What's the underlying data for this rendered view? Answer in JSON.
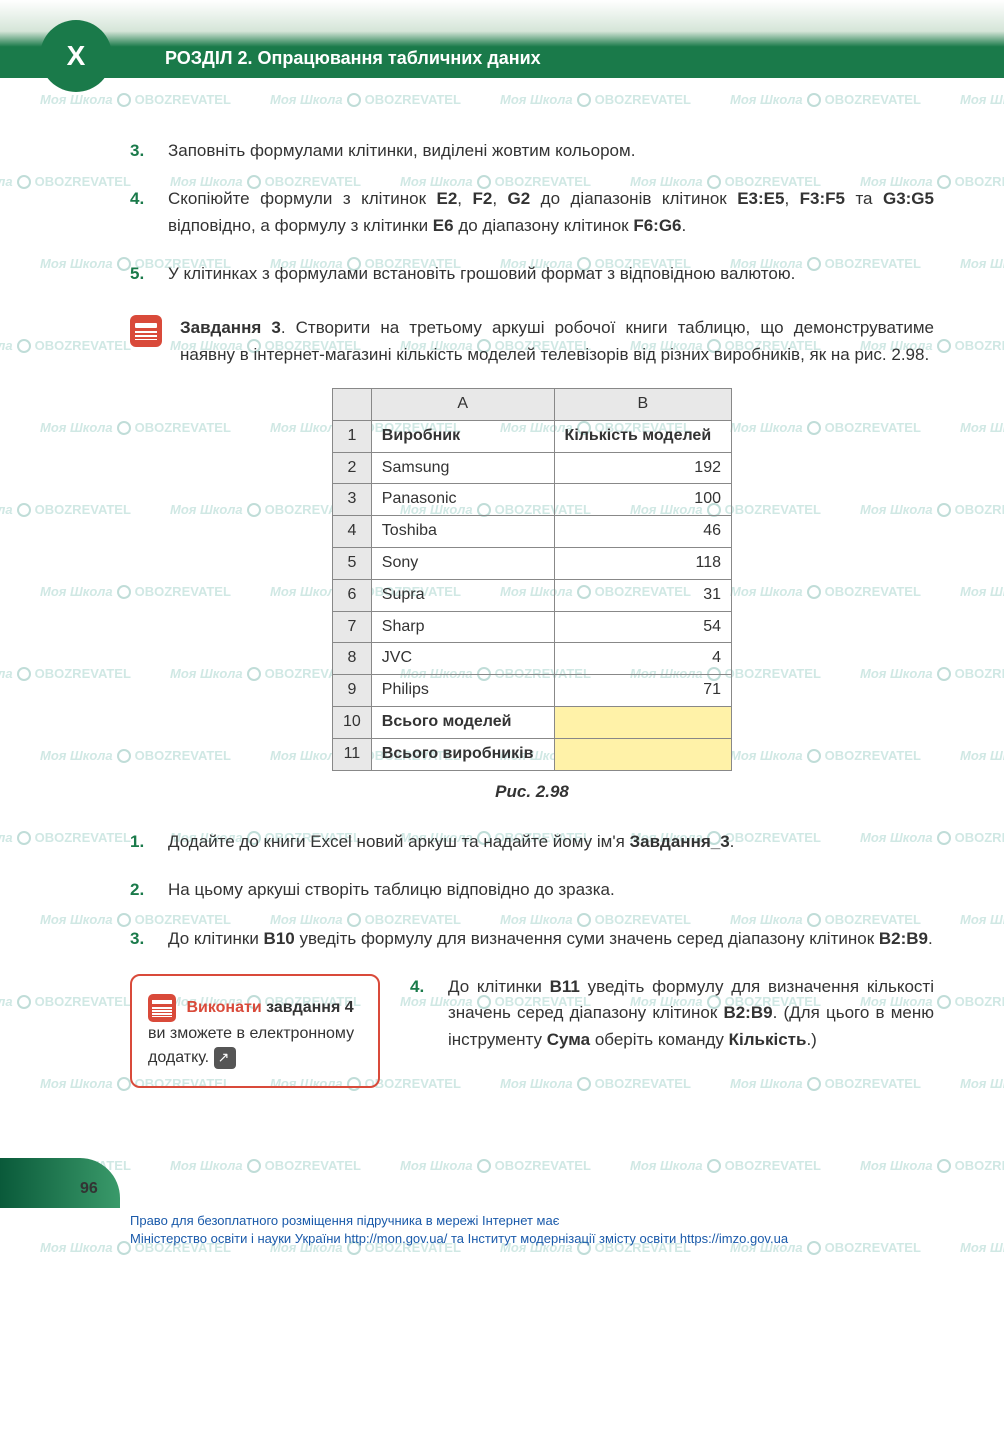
{
  "header": {
    "badge": "X",
    "title": "РОЗДІЛ 2. Опрацювання табличних даних"
  },
  "items_top": [
    {
      "num": "3.",
      "text": "Заповніть формулами клітинки, виділені жовтим кольором."
    },
    {
      "num": "4.",
      "html": "Скопіюйте формули з клітинок <b>E2</b>, <b>F2</b>, <b>G2</b> до діапазонів клітинок <b>E3:E5</b>, <b>F3:F5</b> та <b>G3:G5</b> відповідно, а формулу з клітинки <b>E6</b> до діапазону клітинок <b>F6:G6</b>."
    },
    {
      "num": "5.",
      "text": "У клітинках з формулами встановіть грошовий формат з відповідною валютою."
    }
  ],
  "task": {
    "html": "<b>Завдання 3</b>. Створити на третьому аркуші робочої книги таблицю, що демонструватиме наявну в інтернет-магазині кількість моделей телевізорів від різних виробників, як на рис. 2.98."
  },
  "table": {
    "col_headers": [
      "A",
      "B"
    ],
    "header_row": [
      "Виробник",
      "Кількість моделей"
    ],
    "rows": [
      [
        "Samsung",
        "192"
      ],
      [
        "Panasonic",
        "100"
      ],
      [
        "Toshiba",
        "46"
      ],
      [
        "Sony",
        "118"
      ],
      [
        "Supra",
        "31"
      ],
      [
        "Sharp",
        "54"
      ],
      [
        "JVC",
        "4"
      ],
      [
        "Philips",
        "71"
      ]
    ],
    "summary_rows": [
      "Всього моделей",
      "Всього виробників"
    ],
    "row_nums": [
      "1",
      "2",
      "3",
      "4",
      "5",
      "6",
      "7",
      "8",
      "9",
      "10",
      "11"
    ]
  },
  "figure_caption": "Рис. 2.98",
  "items_bottom": [
    {
      "num": "1.",
      "html": "Додайте до книги Excel новий аркуш та надайте йому ім'я <b>Завдання_3</b>."
    },
    {
      "num": "2.",
      "text": "На цьому аркуші створіть таблицю відповідно до зразка."
    },
    {
      "num": "3.",
      "html": "До клітинки <b>B10</b> уведіть формулу для визначення суми значень серед діапазону клітинок <b>B2:B9</b>."
    }
  ],
  "callout": {
    "part1": "Виконати",
    "part2": "завдання 4",
    "part3": "ви зможете в електронному додатку."
  },
  "item4": {
    "num": "4.",
    "html": "До клітинки <b>B11</b> уведіть формулу для визначення кількості значень серед діапазону клітинок <b>B2:B9</b>. (Для цього в меню інструменту <b>Сума</b> оберіть команду <b>Кількість</b>.)"
  },
  "page_number": "96",
  "footer": {
    "line1": "Право для безоплатного розміщення підручника в мережі Інтернет має",
    "line2": "Міністерство освіти і науки України http://mon.gov.ua/ та Інститут модернізації змісту освіти https://imzo.gov.ua"
  },
  "watermark_text": "Моя Школа",
  "watermark_text2": "OBOZREVATEL"
}
